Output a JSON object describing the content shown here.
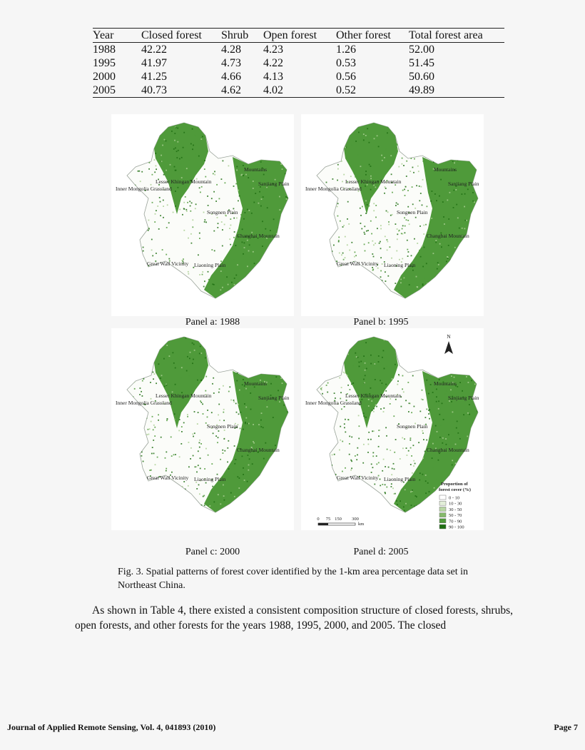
{
  "table": {
    "headers": [
      "Year",
      "Closed forest",
      "Shrub",
      "Open forest",
      "Other forest",
      "Total forest area"
    ],
    "rows": [
      [
        "1988",
        "42.22",
        "4.28",
        "4.23",
        "1.26",
        "52.00"
      ],
      [
        "1995",
        "41.97",
        "4.73",
        "4.22",
        "0.53",
        "51.45"
      ],
      [
        "2000",
        "41.25",
        "4.66",
        "4.13",
        "0.56",
        "50.60"
      ],
      [
        "2005",
        "40.73",
        "4.62",
        "4.02",
        "0.52",
        "49.89"
      ]
    ]
  },
  "map_labels": {
    "lesser_khingan": "Lesser Khingan Mountain",
    "mountains_ne": "Mountains",
    "inner_mongolia": "Inner Mongolia Grassland",
    "sanjiang": "Sanjiang Plain",
    "songnen": "Songnen Plain",
    "changbai": "Changbai Mountain",
    "great_wall": "Great Wall Vicinity",
    "liaoning": "Liaoning Plain"
  },
  "panels": [
    {
      "caption": "Panel a: 1988"
    },
    {
      "caption": "Panel b: 1995"
    },
    {
      "caption": "Panel c: 2000"
    },
    {
      "caption": "Panel d: 2005"
    }
  ],
  "north_arrow": "N",
  "legend": {
    "title_line1": "Proportion of",
    "title_line2": "forest cover (%)",
    "classes": [
      {
        "label": "0 - 10",
        "color": "#ffffff"
      },
      {
        "label": "10 - 30",
        "color": "#e3efd9"
      },
      {
        "label": "30 - 50",
        "color": "#b9d7a4"
      },
      {
        "label": "50 - 70",
        "color": "#86ba6b"
      },
      {
        "label": "70 - 90",
        "color": "#4f9a3a"
      },
      {
        "label": "90 - 100",
        "color": "#1f6e12"
      }
    ]
  },
  "scale_bar": {
    "ticks": [
      "0",
      "75",
      "150",
      "300"
    ],
    "unit": "km"
  },
  "figure_caption": "Fig. 3. Spatial patterns of forest cover identified by the 1-km area percentage data set in Northeast China.",
  "body_text": "As shown in Table 4, there existed a consistent composition structure of closed forests, shrubs, open forests, and other forests for the years 1988, 1995, 2000, and 2005. The closed",
  "footer": {
    "journal": "Journal of Applied Remote Sensing, Vol. 4, 041893 (2010)",
    "page": "Page 7"
  },
  "colors": {
    "forest_dark": "#1f6e12",
    "forest_mid": "#4f9a3a",
    "forest_light": "#a9cf92",
    "outline": "#9aa39a"
  }
}
